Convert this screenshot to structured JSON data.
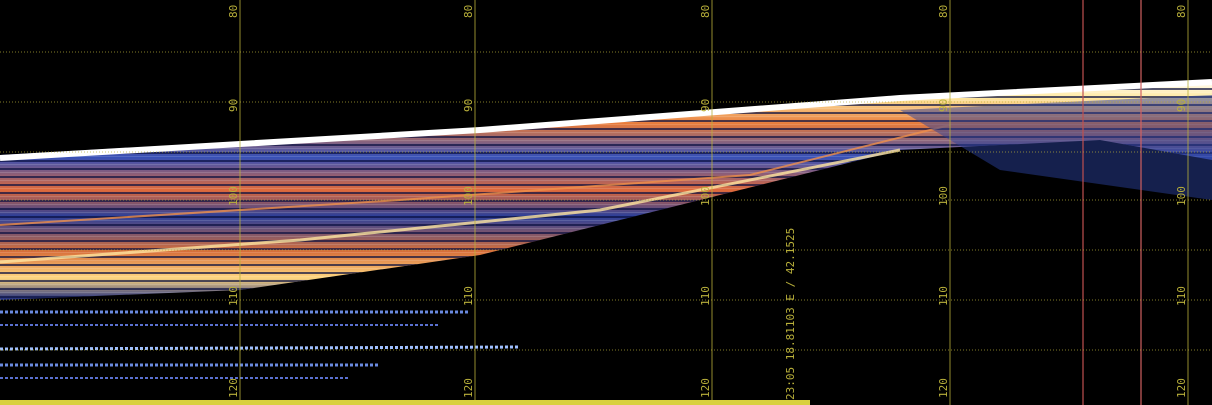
{
  "depth_labels": [
    "80",
    "90",
    "100",
    "110",
    "120"
  ],
  "annotation": "23:05   18.81103 E / 42.1525"
}
